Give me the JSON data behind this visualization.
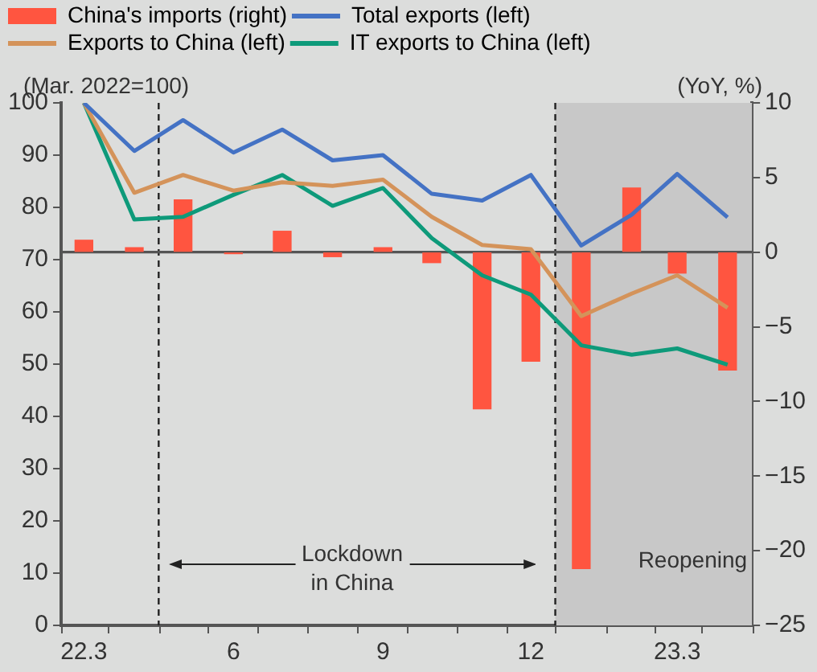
{
  "chart_data": {
    "type": "line",
    "ylabel": "(Mar. 2022=100)",
    "y2label": "(YoY, %)",
    "x": [
      "2022-03",
      "2022-04",
      "2022-05",
      "2022-06",
      "2022-07",
      "2022-08",
      "2022-09",
      "2022-10",
      "2022-11",
      "2022-12",
      "2023-01",
      "2023-02",
      "2023-03",
      "2023-04"
    ],
    "xlim": [
      "2022-02-15",
      "2023-04-16"
    ],
    "xticks": [
      {
        "value": "2022-02-15",
        "label": null
      },
      {
        "value": "2022-03",
        "label": "22.3"
      },
      {
        "value": "2022-03-16",
        "label": null
      },
      {
        "value": "2022-04-16",
        "label": null
      },
      {
        "value": "2022-05-16",
        "label": null
      },
      {
        "value": "2022-06",
        "label": "6"
      },
      {
        "value": "2022-06-16",
        "label": null
      },
      {
        "value": "2022-07-16",
        "label": null
      },
      {
        "value": "2022-08-16",
        "label": null
      },
      {
        "value": "2022-09",
        "label": "9"
      },
      {
        "value": "2022-09-16",
        "label": null
      },
      {
        "value": "2022-10-16",
        "label": null
      },
      {
        "value": "2022-11-16",
        "label": null
      },
      {
        "value": "2022-12",
        "label": "12"
      },
      {
        "value": "2022-12-16",
        "label": null
      },
      {
        "value": "2023-01-16",
        "label": null
      },
      {
        "value": "2023-02-15",
        "label": null
      },
      {
        "value": "2023-03",
        "label": "23.3"
      },
      {
        "value": "2023-03-16",
        "label": null
      },
      {
        "value": "2023-04-16",
        "label": null
      }
    ],
    "ylim": [
      0,
      100
    ],
    "yticks": [
      0,
      10,
      20,
      30,
      40,
      50,
      60,
      70,
      80,
      90,
      100
    ],
    "y2lim": [
      -25,
      10
    ],
    "y2ticks": [
      -25,
      -20,
      -15,
      -10,
      -5,
      0,
      5,
      10
    ],
    "series": [
      {
        "name": "China's imports (right)",
        "type": "bar",
        "axis": "y2",
        "color": "#ff5540",
        "values": [
          0.8,
          0.3,
          3.5,
          -0.1,
          1.4,
          -0.3,
          0.3,
          -0.7,
          -10.5,
          -7.3,
          -21.2,
          4.3,
          -1.4,
          -7.9
        ]
      },
      {
        "name": "Total exports (left)",
        "color": "#4472c4",
        "values": [
          100,
          90.8,
          96.7,
          90.5,
          94.9,
          89.0,
          90.0,
          82.6,
          81.3,
          86.2,
          72.7,
          78.6,
          86.4,
          78.1
        ]
      },
      {
        "name": "Exports to China (left)",
        "color": "#d4935a",
        "values": [
          100,
          82.8,
          86.2,
          83.2,
          84.8,
          84.1,
          85.3,
          78.2,
          72.8,
          72.0,
          59.2,
          63.5,
          67.0,
          60.8
        ]
      },
      {
        "name": "IT exports to China (left)",
        "color": "#0e9a7a",
        "values": [
          100,
          77.7,
          78.2,
          82.4,
          86.2,
          80.3,
          83.7,
          74.1,
          67.0,
          63.3,
          53.6,
          51.8,
          53.0,
          49.9
        ]
      }
    ],
    "ref_lines": [
      {
        "axis": "x",
        "value": "2022-04-16",
        "color": "#222222",
        "line_style": "dashed"
      },
      {
        "axis": "x",
        "value": "2022-12-16",
        "color": "#222222",
        "line_style": "dashed"
      },
      {
        "axis": "y2",
        "value": 0,
        "color": "#555555",
        "line_style": "solid"
      }
    ],
    "bands": [
      {
        "axis": "x",
        "from": "2022-12-16",
        "to": "2023-04-16",
        "label": "Reopening",
        "color": "#c8c8c8"
      }
    ],
    "annotations": [
      "Lockdown in China"
    ],
    "legend": "top",
    "grid": false,
    "marker": "none",
    "line_style": "solid"
  }
}
